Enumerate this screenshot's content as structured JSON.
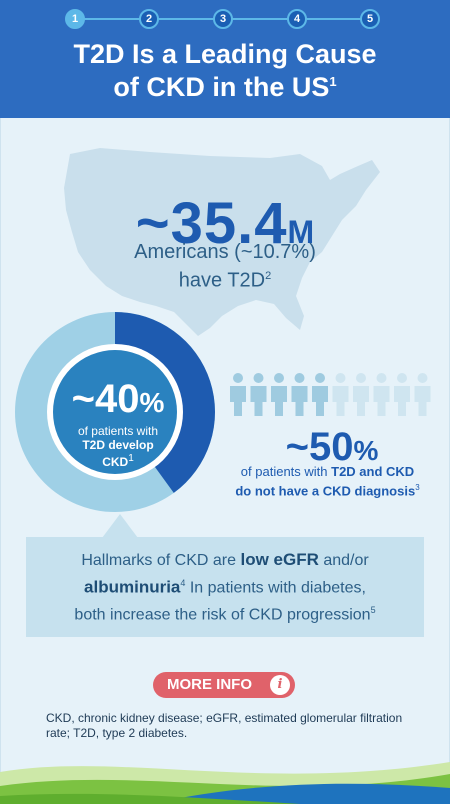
{
  "progress": {
    "steps": [
      "1",
      "2",
      "3",
      "4",
      "5"
    ],
    "active_index": 0
  },
  "header": {
    "title_line1": "T2D Is a Leading Cause",
    "title_line2": "of CKD in the US",
    "title_ref": "1"
  },
  "stat_americans": {
    "number": "~35.4",
    "unit": "M",
    "line1": "Americans (~10.7%)",
    "line2": "have T2D",
    "ref": "2"
  },
  "stat_ckd": {
    "value": 40,
    "number": "~40",
    "pct_sign": "%",
    "line1": "of patients with",
    "line2": "T2D develop",
    "line3": "CKD",
    "ref": "1"
  },
  "stat_diagnosis": {
    "value": 50,
    "people_total": 10,
    "people_highlighted": 5,
    "number": "~50",
    "pct_sign": "%",
    "line1_pre": "of patients with ",
    "line1_bold": "T2D and CKD",
    "line2": "do not have a CKD diagnosis",
    "ref": "3"
  },
  "hallmark": {
    "pre": "Hallmarks of CKD are ",
    "bold1": "low eGFR",
    "mid": " and/or",
    "bold2": "albuminuria",
    "ref1": "4",
    "post": " In patients with diabetes,",
    "line3": "both increase the risk of CKD progression",
    "ref2": "5"
  },
  "more_info": {
    "label": "MORE INFO",
    "icon": "info-icon"
  },
  "footnote": "CKD, chronic kidney disease; eGFR, estimated glomerular filtration rate; T2D, type 2 diabetes.",
  "colors": {
    "header": "#2d6cc0",
    "accent_blue": "#1e5bb0",
    "light_blue": "#9fd0e6",
    "button": "#e0626a",
    "green": "#7cc242"
  }
}
